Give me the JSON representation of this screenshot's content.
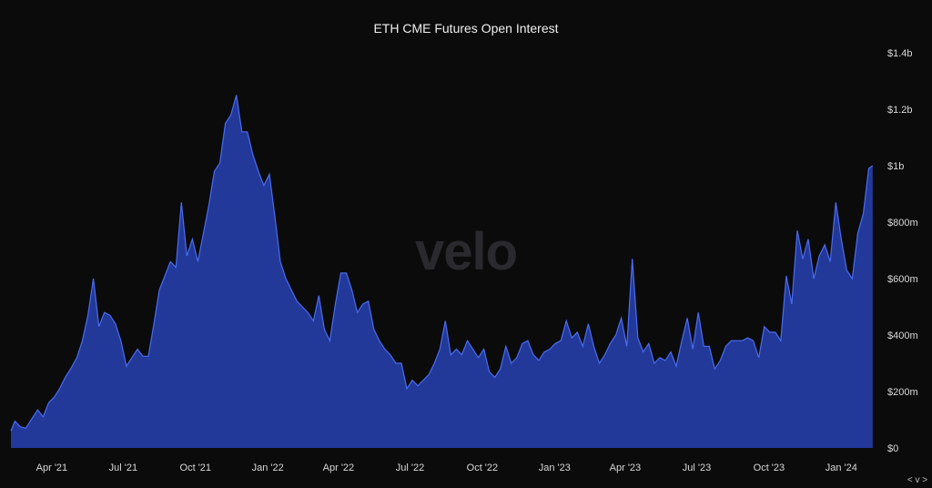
{
  "chart_data": {
    "type": "area",
    "title": "ETH CME Futures Open Interest",
    "watermark": "velo",
    "x_start": "2021-02-08",
    "x_end": "2024-02-16",
    "x_ticks": [
      {
        "date": "2021-04-01",
        "label": "Apr '21"
      },
      {
        "date": "2021-07-01",
        "label": "Jul '21"
      },
      {
        "date": "2021-10-01",
        "label": "Oct '21"
      },
      {
        "date": "2022-01-01",
        "label": "Jan '22"
      },
      {
        "date": "2022-04-01",
        "label": "Apr '22"
      },
      {
        "date": "2022-07-01",
        "label": "Jul '22"
      },
      {
        "date": "2022-10-01",
        "label": "Oct '22"
      },
      {
        "date": "2023-01-01",
        "label": "Jan '23"
      },
      {
        "date": "2023-04-01",
        "label": "Apr '23"
      },
      {
        "date": "2023-07-01",
        "label": "Jul '23"
      },
      {
        "date": "2023-10-01",
        "label": "Oct '23"
      },
      {
        "date": "2024-01-01",
        "label": "Jan '24"
      }
    ],
    "y_ticks": [
      {
        "value": 0,
        "label": "$0"
      },
      {
        "value": 200,
        "label": "$200m"
      },
      {
        "value": 400,
        "label": "$400m"
      },
      {
        "value": 600,
        "label": "$600m"
      },
      {
        "value": 800,
        "label": "$800m"
      },
      {
        "value": 1000,
        "label": "$1b"
      },
      {
        "value": 1200,
        "label": "$1.2b"
      },
      {
        "value": 1400,
        "label": "$1.4b"
      }
    ],
    "ylim": [
      0,
      1400
    ],
    "y_unit": "USD millions",
    "grid": false,
    "color_fill": "#22399a",
    "color_line": "#4a6cf0",
    "points": [
      [
        "2021-02-08",
        60
      ],
      [
        "2021-02-13",
        95
      ],
      [
        "2021-02-20",
        75
      ],
      [
        "2021-02-27",
        70
      ],
      [
        "2021-03-07",
        105
      ],
      [
        "2021-03-14",
        135
      ],
      [
        "2021-03-21",
        110
      ],
      [
        "2021-03-28",
        160
      ],
      [
        "2021-04-04",
        180
      ],
      [
        "2021-04-11",
        210
      ],
      [
        "2021-04-18",
        250
      ],
      [
        "2021-04-25",
        280
      ],
      [
        "2021-05-03",
        320
      ],
      [
        "2021-05-10",
        380
      ],
      [
        "2021-05-17",
        470
      ],
      [
        "2021-05-24",
        600
      ],
      [
        "2021-05-31",
        430
      ],
      [
        "2021-06-07",
        480
      ],
      [
        "2021-06-14",
        470
      ],
      [
        "2021-06-21",
        440
      ],
      [
        "2021-06-28",
        380
      ],
      [
        "2021-07-05",
        290
      ],
      [
        "2021-07-12",
        320
      ],
      [
        "2021-07-19",
        350
      ],
      [
        "2021-07-26",
        325
      ],
      [
        "2021-08-02",
        325
      ],
      [
        "2021-08-09",
        440
      ],
      [
        "2021-08-16",
        560
      ],
      [
        "2021-08-23",
        610
      ],
      [
        "2021-08-30",
        660
      ],
      [
        "2021-09-06",
        640
      ],
      [
        "2021-09-13",
        870
      ],
      [
        "2021-09-20",
        680
      ],
      [
        "2021-09-27",
        740
      ],
      [
        "2021-10-04",
        660
      ],
      [
        "2021-10-11",
        760
      ],
      [
        "2021-10-18",
        860
      ],
      [
        "2021-10-25",
        980
      ],
      [
        "2021-11-01",
        1010
      ],
      [
        "2021-11-08",
        1150
      ],
      [
        "2021-11-15",
        1180
      ],
      [
        "2021-11-22",
        1250
      ],
      [
        "2021-11-29",
        1120
      ],
      [
        "2021-12-06",
        1120
      ],
      [
        "2021-12-13",
        1040
      ],
      [
        "2021-12-20",
        980
      ],
      [
        "2021-12-27",
        930
      ],
      [
        "2022-01-03",
        970
      ],
      [
        "2022-01-10",
        820
      ],
      [
        "2022-01-17",
        660
      ],
      [
        "2022-01-24",
        600
      ],
      [
        "2022-01-31",
        560
      ],
      [
        "2022-02-07",
        520
      ],
      [
        "2022-02-14",
        500
      ],
      [
        "2022-02-21",
        480
      ],
      [
        "2022-02-28",
        450
      ],
      [
        "2022-03-07",
        540
      ],
      [
        "2022-03-14",
        420
      ],
      [
        "2022-03-21",
        380
      ],
      [
        "2022-03-28",
        510
      ],
      [
        "2022-04-04",
        620
      ],
      [
        "2022-04-11",
        620
      ],
      [
        "2022-04-18",
        560
      ],
      [
        "2022-04-25",
        480
      ],
      [
        "2022-05-02",
        510
      ],
      [
        "2022-05-09",
        520
      ],
      [
        "2022-05-16",
        420
      ],
      [
        "2022-05-23",
        380
      ],
      [
        "2022-05-30",
        350
      ],
      [
        "2022-06-06",
        330
      ],
      [
        "2022-06-13",
        300
      ],
      [
        "2022-06-20",
        300
      ],
      [
        "2022-06-27",
        210
      ],
      [
        "2022-07-04",
        240
      ],
      [
        "2022-07-11",
        220
      ],
      [
        "2022-07-18",
        240
      ],
      [
        "2022-07-25",
        260
      ],
      [
        "2022-08-01",
        300
      ],
      [
        "2022-08-08",
        350
      ],
      [
        "2022-08-15",
        450
      ],
      [
        "2022-08-22",
        330
      ],
      [
        "2022-08-29",
        350
      ],
      [
        "2022-09-05",
        330
      ],
      [
        "2022-09-12",
        380
      ],
      [
        "2022-09-19",
        350
      ],
      [
        "2022-09-26",
        320
      ],
      [
        "2022-10-03",
        350
      ],
      [
        "2022-10-10",
        270
      ],
      [
        "2022-10-17",
        250
      ],
      [
        "2022-10-24",
        280
      ],
      [
        "2022-10-31",
        360
      ],
      [
        "2022-11-07",
        300
      ],
      [
        "2022-11-14",
        320
      ],
      [
        "2022-11-21",
        370
      ],
      [
        "2022-11-28",
        380
      ],
      [
        "2022-12-05",
        330
      ],
      [
        "2022-12-12",
        310
      ],
      [
        "2022-12-19",
        340
      ],
      [
        "2022-12-26",
        350
      ],
      [
        "2023-01-02",
        370
      ],
      [
        "2023-01-09",
        380
      ],
      [
        "2023-01-16",
        450
      ],
      [
        "2023-01-23",
        390
      ],
      [
        "2023-01-30",
        410
      ],
      [
        "2023-02-06",
        360
      ],
      [
        "2023-02-13",
        440
      ],
      [
        "2023-02-20",
        360
      ],
      [
        "2023-02-27",
        300
      ],
      [
        "2023-03-06",
        330
      ],
      [
        "2023-03-13",
        370
      ],
      [
        "2023-03-20",
        400
      ],
      [
        "2023-03-27",
        460
      ],
      [
        "2023-04-03",
        360
      ],
      [
        "2023-04-10",
        670
      ],
      [
        "2023-04-17",
        390
      ],
      [
        "2023-04-24",
        340
      ],
      [
        "2023-05-01",
        370
      ],
      [
        "2023-05-08",
        300
      ],
      [
        "2023-05-15",
        320
      ],
      [
        "2023-05-22",
        310
      ],
      [
        "2023-05-29",
        340
      ],
      [
        "2023-06-05",
        290
      ],
      [
        "2023-06-12",
        380
      ],
      [
        "2023-06-19",
        460
      ],
      [
        "2023-06-26",
        350
      ],
      [
        "2023-07-03",
        480
      ],
      [
        "2023-07-10",
        360
      ],
      [
        "2023-07-17",
        360
      ],
      [
        "2023-07-24",
        280
      ],
      [
        "2023-07-31",
        310
      ],
      [
        "2023-08-07",
        360
      ],
      [
        "2023-08-14",
        380
      ],
      [
        "2023-08-21",
        380
      ],
      [
        "2023-08-28",
        380
      ],
      [
        "2023-09-04",
        390
      ],
      [
        "2023-09-11",
        380
      ],
      [
        "2023-09-18",
        320
      ],
      [
        "2023-09-25",
        430
      ],
      [
        "2023-10-02",
        410
      ],
      [
        "2023-10-09",
        410
      ],
      [
        "2023-10-16",
        380
      ],
      [
        "2023-10-23",
        610
      ],
      [
        "2023-10-30",
        510
      ],
      [
        "2023-11-06",
        770
      ],
      [
        "2023-11-13",
        670
      ],
      [
        "2023-11-20",
        740
      ],
      [
        "2023-11-27",
        600
      ],
      [
        "2023-12-04",
        680
      ],
      [
        "2023-12-11",
        720
      ],
      [
        "2023-12-18",
        660
      ],
      [
        "2023-12-25",
        870
      ],
      [
        "2024-01-01",
        740
      ],
      [
        "2024-01-08",
        630
      ],
      [
        "2024-01-15",
        600
      ],
      [
        "2024-01-22",
        760
      ],
      [
        "2024-01-29",
        830
      ],
      [
        "2024-02-05",
        990
      ],
      [
        "2024-02-10",
        1000
      ]
    ]
  },
  "ui": {
    "range_toggle": "< v >"
  }
}
